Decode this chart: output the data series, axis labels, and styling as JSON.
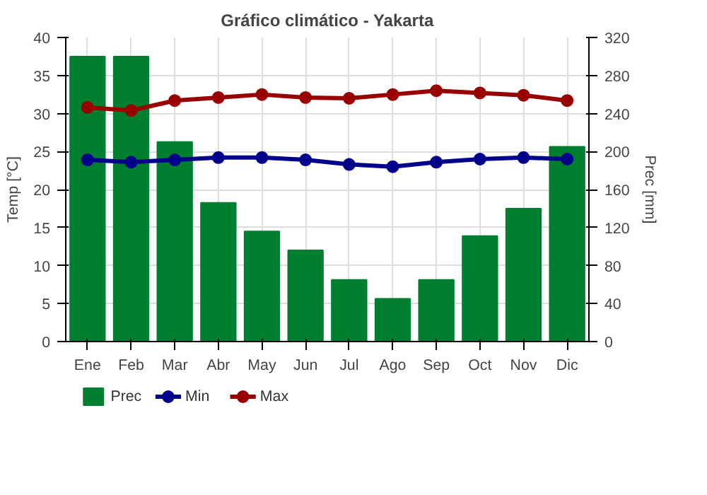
{
  "chart_data": {
    "type": "bar",
    "title": "Gráfico climático - Yakarta",
    "ylabel": "Temp [°C]",
    "y2label": "Prec [mm]",
    "categories": [
      "Ene",
      "Feb",
      "Mar",
      "Abr",
      "May",
      "Jun",
      "Jul",
      "Ago",
      "Sep",
      "Oct",
      "Nov",
      "Dic"
    ],
    "series": [
      {
        "name": "Prec",
        "axis": "y2",
        "color": "#007f30",
        "values": [
          300,
          300,
          210,
          146,
          116,
          96,
          65,
          45,
          65,
          111,
          140,
          205
        ]
      },
      {
        "name": "Min",
        "type": "line",
        "color": "#00008b",
        "values": [
          23.9,
          23.6,
          23.9,
          24.2,
          24.2,
          23.9,
          23.3,
          23.0,
          23.6,
          24.0,
          24.2,
          24.0
        ]
      },
      {
        "name": "Max",
        "type": "line",
        "color": "#990000",
        "values": [
          30.8,
          30.4,
          31.7,
          32.1,
          32.5,
          32.1,
          32.0,
          32.5,
          33.0,
          32.7,
          32.4,
          31.7
        ]
      }
    ],
    "ylim": [
      0,
      40
    ],
    "yticks": [
      0,
      5,
      10,
      15,
      20,
      25,
      30,
      35,
      40
    ],
    "y2lim": [
      0,
      320
    ],
    "y2ticks": [
      0,
      40,
      80,
      120,
      160,
      200,
      240,
      280,
      320
    ],
    "grid": true,
    "legend": "bottom",
    "marker": "circle",
    "line_style": "solid"
  }
}
